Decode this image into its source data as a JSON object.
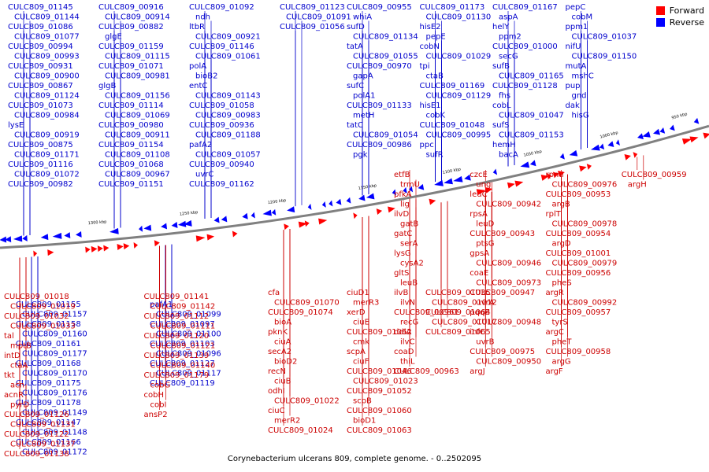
{
  "caption": "Corynebacterium ulcerans 809, complete genome. - 0..2502095",
  "legend": {
    "forward": {
      "label": "Forward",
      "color": "#ff0000"
    },
    "reverse": {
      "label": "Reverse",
      "color": "#0000ff"
    }
  },
  "colors": {
    "forward_label": "#cc0000",
    "reverse_label": "#0000cc",
    "backbone": "#808080"
  },
  "scale_labels": [
    "1300 kbp",
    "1250 kbp",
    "1200 kbp",
    "1150 kbp",
    "1100 kbp",
    "1050 kbp",
    "1000 kbp",
    "950 kbp"
  ],
  "reverse_labels": [
    "CULC809_01145",
    "CULC809_01144",
    "CULC809_01086",
    "CULC809_01077",
    "CULC809_00994",
    "CULC809_00993",
    "CULC809_00931",
    "CULC809_00900",
    "CULC809_00867",
    "CULC809_01124",
    "CULC809_01073",
    "CULC809_00984",
    "lysE",
    "CULC809_00919",
    "CULC809_00875",
    "CULC809_01171",
    "CULC809_01116",
    "CULC809_01072",
    "CULC809_00982",
    "CULC809_00916",
    "CULC809_00914",
    "CULC809_00882",
    "glgE",
    "CULC809_01159",
    "CULC809_01115",
    "CULC809_01071",
    "CULC809_00981",
    "glgB",
    "CULC809_01156",
    "CULC809_01114",
    "CULC809_01069",
    "CULC809_00980",
    "CULC809_00911",
    "CULC809_01154",
    "CULC809_01108",
    "CULC809_01068",
    "CULC809_00967",
    "CULC809_01151",
    "CULC809_01092",
    "ndh",
    "ltbR",
    "CULC809_00921",
    "CULC809_01146",
    "CULC809_01061",
    "polA",
    "bioB2",
    "entC",
    "CULC809_01143",
    "CULC809_01058",
    "CULC809_00983",
    "CULC809_00936",
    "CULC809_01188",
    "pafA2",
    "CULC809_01057",
    "CULC809_00940",
    "uvrC",
    "CULC809_01162",
    "CULC809_01123",
    "CULC809_01091",
    "CULC809_01056",
    "CULC809_00955",
    "whiA",
    "sufD",
    "CULC809_01134",
    "tatA",
    "CULC809_01055",
    "CULC809_00970",
    "gapA",
    "sufC",
    "polA1",
    "CULC809_01133",
    "metH",
    "tatC",
    "CULC809_01054",
    "CULC809_00986",
    "pgk",
    "CULC809_01173",
    "CULC809_01130",
    "hisE2",
    "pepE",
    "cobN",
    "CULC809_01029",
    "tpi",
    "ctaB",
    "CULC809_01169",
    "CULC809_01129",
    "hisE1",
    "cobK",
    "CULC809_01048",
    "CULC809_00995",
    "ppc",
    "sufR",
    "CULC809_01167",
    "aspA",
    "helY",
    "ppm2",
    "CULC809_01000",
    "secG",
    "sufB",
    "CULC809_01165",
    "CULC809_01128",
    "fhs",
    "cobL",
    "CULC809_01047",
    "sufS",
    "CULC809_01153",
    "hemH",
    "bacA",
    "pepC",
    "cobM",
    "ppm1",
    "CULC809_01037",
    "nifU",
    "CULC809_01150",
    "mutA",
    "mshC",
    "pup",
    "gnd",
    "dak",
    "hisG"
  ],
  "forward_labels": [
    "etfB",
    "trmU",
    "pfkA",
    "lig",
    "ilvD",
    "gatB",
    "gatC",
    "serA",
    "lysG",
    "cysA2",
    "gltS",
    "leuB",
    "ilvB",
    "ilvN",
    "CULC809_00961",
    "recG",
    "ddlA",
    "ilvC",
    "coaD",
    "thiL",
    "CULC809_00963",
    "czcE",
    "ung",
    "leuC",
    "CULC809_00942",
    "rpsA",
    "leuD",
    "CULC809_00943",
    "ptsG",
    "gpsA",
    "CULC809_00946",
    "coaE",
    "CULC809_00973",
    "CULC809_00947",
    "uvrA",
    "pqqE",
    "CULC809_00948",
    "infC",
    "uvrB",
    "CULC809_00975",
    "CULC809_00950",
    "argJ",
    "rpmI",
    "CULC809_00976",
    "CULC809_00953",
    "argB",
    "rplT",
    "CULC809_00978",
    "CULC809_00954",
    "argD",
    "CULC809_01001",
    "CULC809_00979",
    "CULC809_00956",
    "pheS",
    "argR",
    "CULC809_00992",
    "CULC809_00957",
    "tyrS",
    "argC",
    "pheT",
    "CULC809_00958",
    "argG",
    "argF",
    "CULC809_00959",
    "argH",
    "cfa",
    "CULC809_01070",
    "CULC809_01074",
    "bioA",
    "pknK",
    "ciuA",
    "secA2",
    "bioD2",
    "recN",
    "ciuB",
    "odhI",
    "CULC809_01022",
    "ciuC",
    "merR2",
    "CULC809_01024",
    "ciuD1",
    "merR3",
    "xerD",
    "ciuE",
    "CULC809_01062",
    "cmk",
    "scpA",
    "ciuF",
    "CULC809_01046",
    "CULC809_01023",
    "CULC809_01052",
    "scpB",
    "CULC809_01060",
    "bioD1",
    "CULC809_01063",
    "CULC809_01035",
    "CULC809_01012",
    "CULC809_01064",
    "CULC809_01017",
    "CULC809_01065",
    "CULC809_01018",
    "CULC809_01019",
    "CULC809_01032",
    "CULC809_01033",
    "tal",
    "mptB",
    "intD",
    "ctaA",
    "tkt",
    "acn",
    "acnR",
    "pyrD",
    "CULC809_01126",
    "CULC809_01131",
    "CULC809_01122",
    "CULC809_01137",
    "CULC809_01138",
    "CULC809_01141",
    "CULC809_01142",
    "CULC809_01112",
    "CULC809_01111",
    "CULC809_01120",
    "CULC809_01121",
    "CULC809_01139",
    "CULC809_01140",
    "CULC809_01179",
    "cobG",
    "cobH",
    "cobI",
    "ansP2"
  ],
  "reverse_labels_lower": [
    "CULC809_01155",
    "CULC809_01157",
    "CULC809_01158",
    "CULC809_01160",
    "CULC809_01161",
    "CULC809_01177",
    "CULC809_01168",
    "CULC809_01170",
    "CULC809_01175",
    "CULC809_01176",
    "CULC809_01178",
    "CULC809_01149",
    "CULC809_01147",
    "CULC809_01148",
    "CULC809_01166",
    "CULC809_01172",
    "pafA1",
    "CULC809_01099",
    "CULC809_01097",
    "CULC809_01100",
    "CULC809_01103",
    "CULC809_01096",
    "CULC809_01127",
    "CULC809_01117",
    "CULC809_01119"
  ]
}
